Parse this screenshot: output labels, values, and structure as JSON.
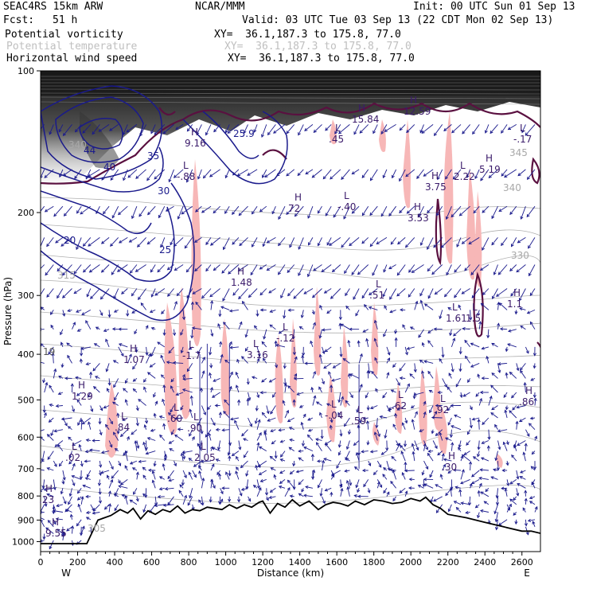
{
  "header": {
    "model": "SEAC4RS 15km ARW",
    "org": "NCAR/MMM",
    "init": "Init: 00 UTC Sun 01 Sep 13",
    "fcst_label": "Fcst:",
    "fcst_value": "51 h",
    "valid": "Valid: 03 UTC Tue 03 Sep 13 (22 CDT Mon 02 Sep 13)",
    "fields": [
      {
        "name": "Potential vorticity",
        "xy": "XY=  36.1,187.3 to 175.8, 77.0",
        "color": "#000000"
      },
      {
        "name": "Potential temperature",
        "xy": "XY=  36.1,187.3 to 175.8, 77.0",
        "color": "#bfbfbf"
      },
      {
        "name": "Horizontal wind speed",
        "xy": "XY=  36.1,187.3 to 175.8, 77.0",
        "color": "#000000"
      }
    ]
  },
  "chart_data": {
    "type": "cross-section",
    "title": "",
    "xlabel": "Distance (km)",
    "ylabel": "Pressure (hPa)",
    "xlim": [
      0,
      2700
    ],
    "ylim": [
      1050,
      100
    ],
    "y_scale": "log",
    "x_ticks": [
      "0",
      "200",
      "400",
      "600",
      "800",
      "1000",
      "1200",
      "1400",
      "1600",
      "1800",
      "2000",
      "2200",
      "2400",
      "2600"
    ],
    "y_ticks": [
      "100",
      "200",
      "300",
      "400",
      "500",
      "600",
      "700",
      "800",
      "900",
      "1000"
    ],
    "endpoints": {
      "left": "W",
      "right": "E"
    },
    "colors": {
      "wind_contour": "#1a1a8c",
      "theta_contour": "#b0b0b0",
      "pv_shade": "#f7b7b7",
      "pv_contour": "#5a1040",
      "terrain": "#000000",
      "wind_vector": "#1a1a8c"
    },
    "terrain": {
      "x": [
        0,
        250,
        310,
        380,
        430,
        470,
        500,
        540,
        580,
        620,
        660,
        700,
        740,
        780,
        820,
        860,
        900,
        940,
        980,
        1020,
        1060,
        1100,
        1140,
        1180,
        1200,
        1240,
        1280,
        1320,
        1360,
        1400,
        1450,
        1500,
        1540,
        1580,
        1620,
        1660,
        1700,
        1750,
        1800,
        1850,
        1900,
        1950,
        2000,
        2050,
        2080,
        2120,
        2160,
        2200,
        2300,
        2400,
        2500,
        2600,
        2650,
        2700
      ],
      "p": [
        1010,
        1010,
        900,
        880,
        855,
        870,
        850,
        895,
        860,
        875,
        855,
        865,
        840,
        870,
        855,
        860,
        845,
        850,
        855,
        835,
        850,
        835,
        845,
        825,
        820,
        870,
        830,
        845,
        815,
        840,
        820,
        855,
        835,
        825,
        830,
        840,
        820,
        835,
        815,
        820,
        830,
        825,
        810,
        820,
        805,
        835,
        850,
        875,
        890,
        910,
        930,
        950,
        950,
        960
      ]
    },
    "wind_speed_contours": [
      "20",
      "25",
      "30",
      "35",
      "40",
      "44",
      "25.9"
    ],
    "theta_labels": [
      "340",
      "315",
      "330",
      "340",
      "345",
      "305",
      "19"
    ],
    "extrema_labels": [
      {
        "type": "H",
        "value": "1.29"
      },
      {
        "type": "H",
        "value": "1.07"
      },
      {
        "type": "L",
        "value": ".02"
      },
      {
        "type": "H",
        "value": ".23"
      },
      {
        "type": "H",
        "value": "9.55"
      },
      {
        "type": "L",
        "value": ".84"
      },
      {
        "type": "L",
        "value": ".60"
      },
      {
        "type": "L",
        "value": ".90"
      },
      {
        "type": "L",
        "value": "2.05"
      },
      {
        "type": "L",
        "value": "-1.7"
      },
      {
        "type": "H",
        "value": "1.48"
      },
      {
        "type": "L",
        "value": "3.16"
      },
      {
        "type": "L",
        "value": "-.12"
      },
      {
        "type": "L",
        "value": "-.04"
      },
      {
        "type": "L",
        "value": ".59"
      },
      {
        "type": "L",
        "value": ".62"
      },
      {
        "type": "L",
        "value": ".92"
      },
      {
        "type": "H",
        "value": ".30"
      },
      {
        "type": "H",
        "value": "72"
      },
      {
        "type": "L",
        "value": "-.40"
      },
      {
        "type": "L",
        "value": ".51"
      },
      {
        "type": "H",
        "value": "3.53"
      },
      {
        "type": "L",
        "value": "1.61"
      },
      {
        "type": "L",
        "value": "1.5"
      },
      {
        "type": "H",
        "value": "3.75"
      },
      {
        "type": "L",
        "value": "2.22"
      },
      {
        "type": "H",
        "value": "5.19"
      },
      {
        "type": "L",
        "value": "-.17"
      },
      {
        "type": "H",
        "value": "12.59"
      },
      {
        "type": "H",
        "value": "15.84"
      },
      {
        "type": "L",
        "value": ".45"
      },
      {
        "type": "H",
        "value": "9.16"
      },
      {
        "type": "L",
        "value": "-.88"
      },
      {
        "type": "H",
        "value": "1.1"
      },
      {
        "type": "H",
        "value": ".86"
      }
    ]
  }
}
